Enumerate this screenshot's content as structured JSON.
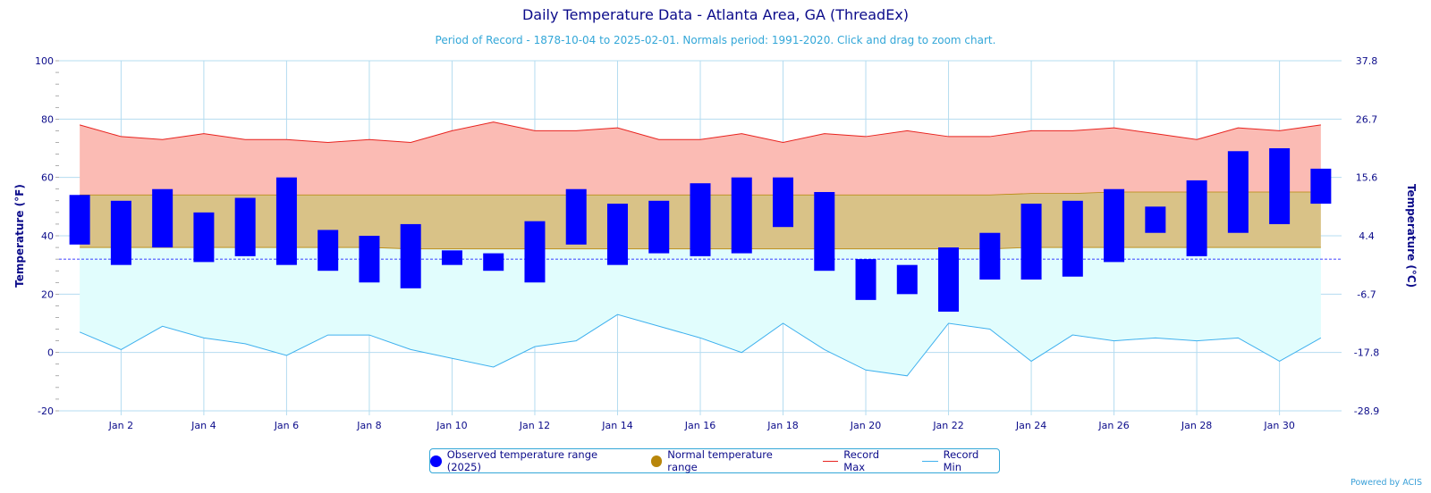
{
  "title": "Daily Temperature Data - Atlanta Area, GA (ThreadEx)",
  "subtitle": "Period of Record - 1878-10-04 to 2025-02-01. Normals period: 1991-2020. Click and drag to zoom chart.",
  "credits": "Powered by ACIS",
  "legend": {
    "observed": "Observed temperature range (2025)",
    "normal": "Normal temperature range",
    "record_max": "Record Max",
    "record_min": "Record Min"
  },
  "colors": {
    "observed": "#0000ff",
    "normal_band": "#d9c287",
    "normal_legend": "#b8860b",
    "record_max_line": "#e8231f",
    "record_max_fill": "#fbbbb4",
    "record_min_line": "#3eb0ee",
    "record_min_fill": "#e1fdfd",
    "axis_text": "#0b0b8a",
    "grid": "#b4dcf0"
  },
  "chart_data": {
    "type": "bar",
    "x": [
      "Jan 1",
      "Jan 2",
      "Jan 3",
      "Jan 4",
      "Jan 5",
      "Jan 6",
      "Jan 7",
      "Jan 8",
      "Jan 9",
      "Jan 10",
      "Jan 11",
      "Jan 12",
      "Jan 13",
      "Jan 14",
      "Jan 15",
      "Jan 16",
      "Jan 17",
      "Jan 18",
      "Jan 19",
      "Jan 20",
      "Jan 21",
      "Jan 22",
      "Jan 23",
      "Jan 24",
      "Jan 25",
      "Jan 26",
      "Jan 27",
      "Jan 28",
      "Jan 29",
      "Jan 30",
      "Jan 31"
    ],
    "x_ticks": [
      "Jan 2",
      "Jan 4",
      "Jan 6",
      "Jan 8",
      "Jan 10",
      "Jan 12",
      "Jan 14",
      "Jan 16",
      "Jan 18",
      "Jan 20",
      "Jan 22",
      "Jan 24",
      "Jan 26",
      "Jan 28",
      "Jan 30"
    ],
    "observed_high": [
      54,
      52,
      56,
      48,
      53,
      60,
      42,
      40,
      44,
      35,
      34,
      45,
      56,
      51,
      52,
      58,
      60,
      60,
      55,
      32,
      30,
      36,
      41,
      51,
      52,
      56,
      50,
      59,
      69,
      70,
      63
    ],
    "observed_low": [
      37,
      30,
      36,
      31,
      33,
      30,
      28,
      24,
      22,
      30,
      28,
      24,
      37,
      30,
      34,
      33,
      34,
      43,
      28,
      18,
      20,
      14,
      25,
      25,
      26,
      31,
      41,
      33,
      41,
      44,
      51
    ],
    "normal_high": [
      54,
      54,
      54,
      54,
      54,
      54,
      54,
      54,
      54,
      54,
      54,
      54,
      54,
      54,
      54,
      54,
      54,
      54,
      54,
      54,
      54,
      54,
      54,
      54.5,
      54.5,
      55,
      55,
      55,
      55,
      55,
      55
    ],
    "normal_low": [
      36,
      36,
      36,
      36,
      36,
      36,
      36,
      36,
      35.5,
      35.5,
      35.5,
      35.5,
      35.5,
      35.5,
      35.5,
      35.5,
      35.5,
      35.5,
      35.5,
      35.5,
      35.5,
      35.5,
      35.5,
      36,
      36,
      36,
      36,
      36,
      36,
      36,
      36
    ],
    "record_max": [
      78,
      74,
      73,
      75,
      73,
      73,
      72,
      73,
      72,
      76,
      79,
      76,
      76,
      77,
      73,
      73,
      75,
      72,
      75,
      74,
      76,
      74,
      74,
      76,
      76,
      77,
      75,
      73,
      77,
      76,
      78
    ],
    "record_min": [
      7,
      1,
      9,
      5,
      3,
      -1,
      6,
      6,
      1,
      -2,
      -5,
      2,
      4,
      13,
      9,
      5,
      0,
      10,
      1,
      -6,
      -8,
      10,
      8,
      -3,
      6,
      4,
      5,
      4,
      5,
      -3,
      5
    ],
    "freezing_line": 32,
    "ylim": [
      -20,
      100
    ],
    "y_ticks_f": [
      -20,
      0,
      20,
      40,
      60,
      80,
      100
    ],
    "y_ticks_c": [
      "-28.9",
      "-17.8",
      "-6.7",
      "4.4",
      "15.6",
      "26.7",
      "37.8"
    ],
    "ylabel": "Temperature (°F)",
    "ylabel_right": "Temperature (°C)",
    "grid": true,
    "legend_position": "bottom-center"
  }
}
